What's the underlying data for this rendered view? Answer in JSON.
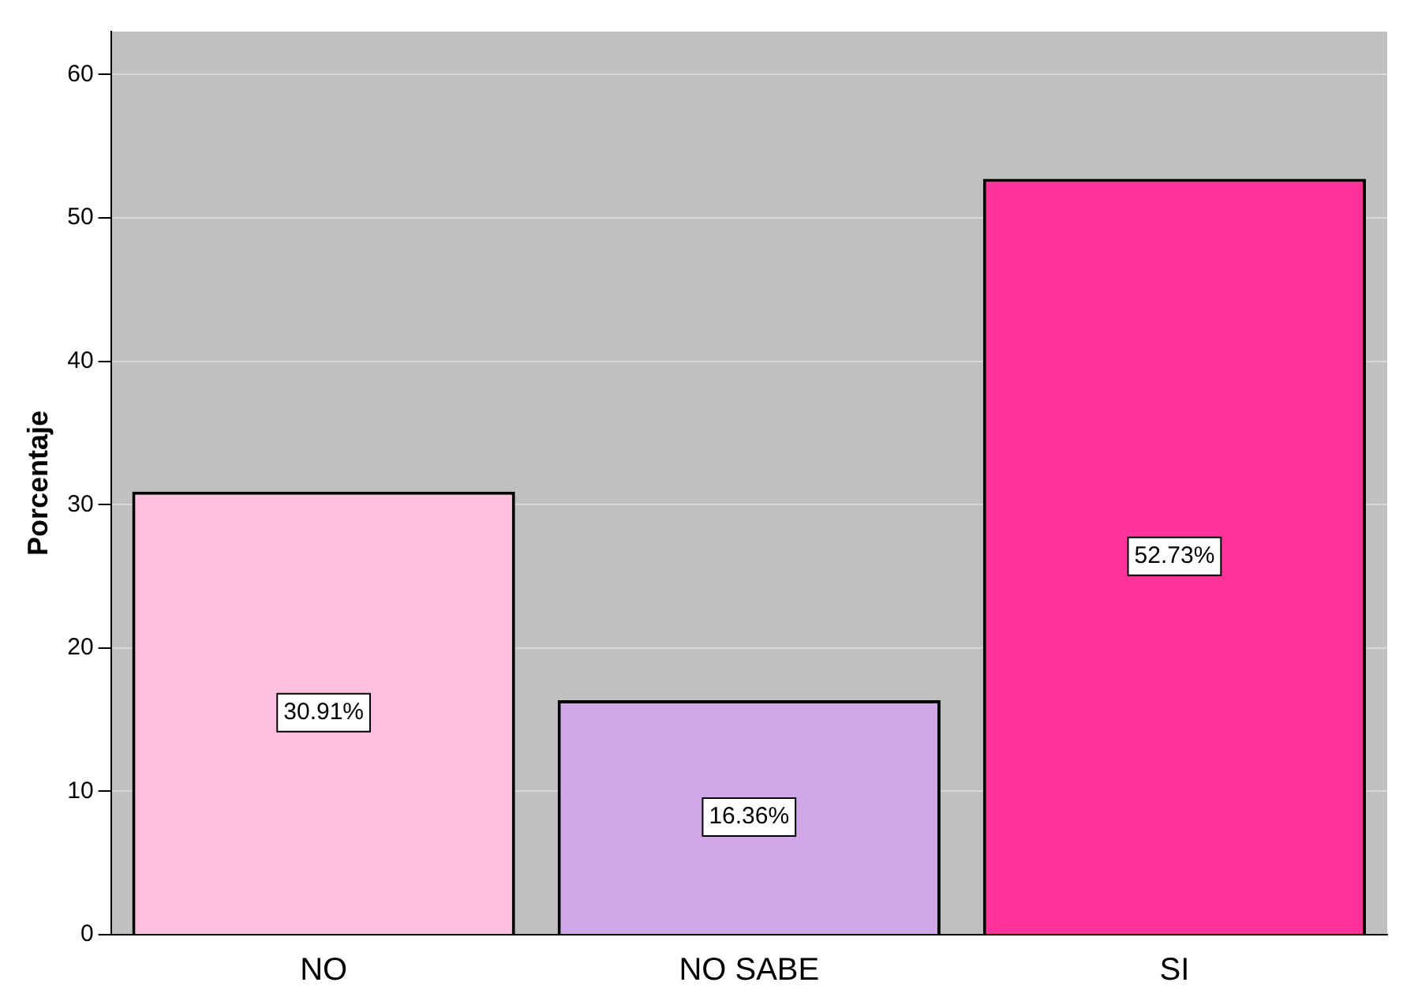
{
  "chart_data": {
    "type": "bar",
    "ylabel": "Porcentaje",
    "categories": [
      "NO",
      "NO SABE",
      "SI"
    ],
    "values": [
      30.91,
      16.36,
      52.73
    ],
    "colors": [
      "#ffc0e0",
      "#d0a8e8",
      "#ff3399"
    ],
    "value_labels": [
      "30.91%",
      "16.36%",
      "52.73%"
    ],
    "ylim": [
      0,
      63
    ],
    "yticks": [
      0,
      10,
      20,
      30,
      40,
      50,
      60
    ],
    "grid": "y",
    "legend": false
  }
}
